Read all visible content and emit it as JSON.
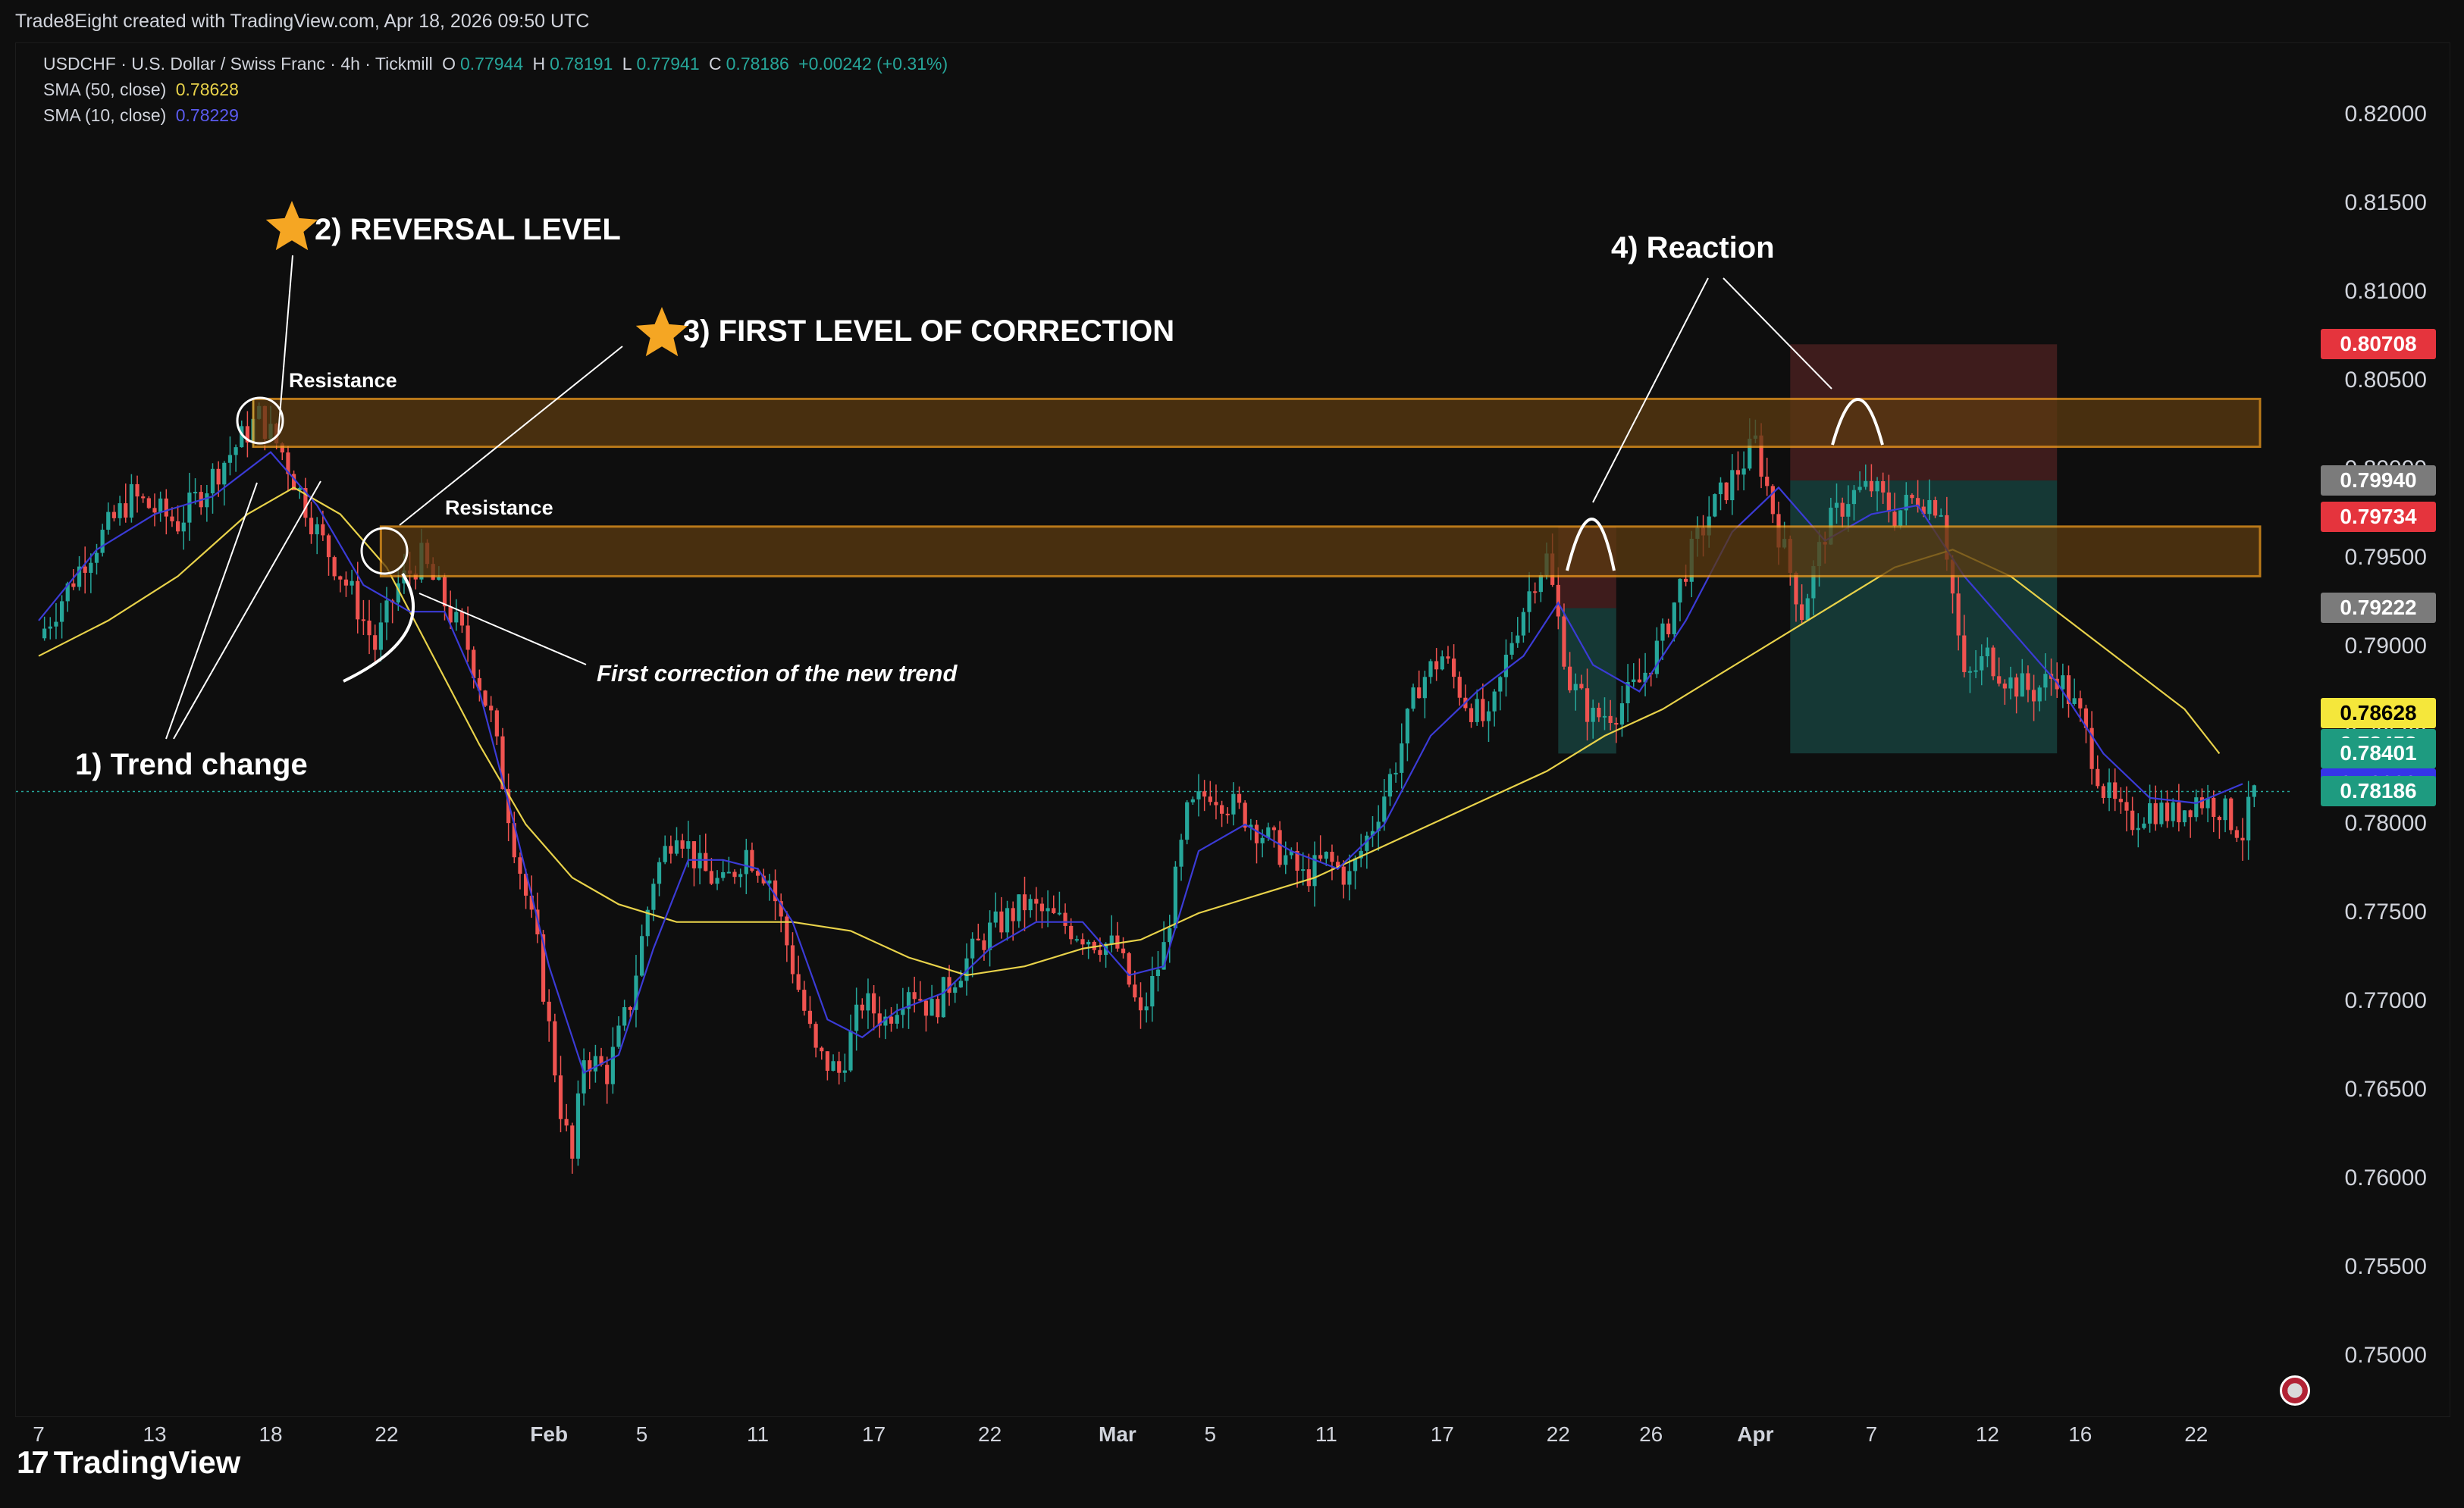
{
  "credit": "Trade8Eight created with TradingView.com, Apr 18, 2026 09:50 UTC",
  "legend": {
    "symbol": "USDCHF · U.S. Dollar / Swiss Franc · 4h · Tickmill",
    "o_label": "O",
    "o_value": "0.77944",
    "h_label": "H",
    "h_value": "0.78191",
    "l_label": "L",
    "l_value": "0.77941",
    "c_label": "C",
    "c_value": "0.78186",
    "change": "+0.00242 (+0.31%)",
    "sma50_label": "SMA (50, close)",
    "sma50_value": "0.78628",
    "sma10_label": "SMA (10, close)",
    "sma10_value": "0.78229"
  },
  "annotations": {
    "trend_change": "1) Trend change",
    "reversal_level": "2) REVERSAL LEVEL",
    "first_correction_level": "3) FIRST LEVEL OF CORRECTION",
    "reaction": "4) Reaction",
    "resistance_1": "Resistance",
    "resistance_2": "Resistance",
    "first_correction_note": "First correction of the new trend"
  },
  "price_labels": [
    {
      "value": "0.80708",
      "bg": "#e5343d",
      "fg": "#ffffff",
      "price": 0.80708
    },
    {
      "value": "0.79940",
      "bg": "#7b7b7b",
      "fg": "#ffffff",
      "price": 0.7994
    },
    {
      "value": "0.79734",
      "bg": "#e5343d",
      "fg": "#ffffff",
      "price": 0.79734
    },
    {
      "value": "0.79222",
      "bg": "#7b7b7b",
      "fg": "#ffffff",
      "price": 0.79222
    },
    {
      "value": "0.78628",
      "bg": "#f5e73b",
      "fg": "#000000",
      "price": 0.78628
    },
    {
      "value": "0.78453",
      "bg": "#1e9b80",
      "fg": "#ffffff",
      "price": 0.78453
    },
    {
      "value": "0.78401",
      "bg": "#1e9b80",
      "fg": "#ffffff",
      "price": 0.78401
    },
    {
      "value": "0.78229",
      "bg": "#3535e8",
      "fg": "#ffffff",
      "price": 0.78229
    },
    {
      "value": "0.78186",
      "bg": "#1e9b80",
      "fg": "#ffffff",
      "price": 0.78186
    }
  ],
  "footer": {
    "logo_text": "TradingView",
    "logo_mark": "17"
  },
  "colors": {
    "up": "#26a69a",
    "down": "#ef5350",
    "sma50": "#e8d24a",
    "sma10": "#3b3bd6",
    "zone_fill": "#5c3a10",
    "zone_border": "#f29d1d"
  },
  "chart_data": {
    "type": "candlestick",
    "title": "USDCHF · U.S. Dollar / Swiss Franc · 4h · Tickmill",
    "timeframe": "4h",
    "ylim": [
      0.75,
      0.8225
    ],
    "y_ticks": [
      "0.82000",
      "0.81500",
      "0.81000",
      "0.80500",
      "0.80000",
      "0.79500",
      "0.79000",
      "0.78500",
      "0.78000",
      "0.77500",
      "0.77000",
      "0.76500",
      "0.76000",
      "0.75500",
      "0.75000"
    ],
    "x_ticks": [
      "7",
      "13",
      "18",
      "22",
      "Feb",
      "5",
      "11",
      "17",
      "22",
      "Mar",
      "5",
      "11",
      "17",
      "22",
      "26",
      "Apr",
      "7",
      "12",
      "16",
      "22"
    ],
    "x_tick_index": [
      0,
      10,
      20,
      30,
      44,
      52,
      62,
      72,
      82,
      93,
      101,
      111,
      121,
      131,
      139,
      148,
      158,
      168,
      176,
      186
    ],
    "series": [
      {
        "name": "SMA (50, close)",
        "value": 0.78628
      },
      {
        "name": "SMA (10, close)",
        "value": 0.78229
      }
    ],
    "close_path": [
      [
        0,
        0.7905
      ],
      [
        4,
        0.795
      ],
      [
        8,
        0.7985
      ],
      [
        12,
        0.797
      ],
      [
        16,
        0.8005
      ],
      [
        19,
        0.803
      ],
      [
        21,
        0.801
      ],
      [
        24,
        0.7965
      ],
      [
        27,
        0.793
      ],
      [
        29,
        0.79
      ],
      [
        31,
        0.7935
      ],
      [
        33,
        0.795
      ],
      [
        35,
        0.7925
      ],
      [
        37,
        0.79
      ],
      [
        39,
        0.786
      ],
      [
        41,
        0.779
      ],
      [
        43,
        0.773
      ],
      [
        45,
        0.764
      ],
      [
        46,
        0.761
      ],
      [
        47,
        0.767
      ],
      [
        49,
        0.766
      ],
      [
        51,
        0.77
      ],
      [
        53,
        0.777
      ],
      [
        55,
        0.78
      ],
      [
        57,
        0.7775
      ],
      [
        59,
        0.7765
      ],
      [
        61,
        0.7785
      ],
      [
        63,
        0.777
      ],
      [
        65,
        0.772
      ],
      [
        67,
        0.767
      ],
      [
        69,
        0.766
      ],
      [
        71,
        0.77
      ],
      [
        73,
        0.769
      ],
      [
        75,
        0.771
      ],
      [
        77,
        0.7695
      ],
      [
        79,
        0.7715
      ],
      [
        82,
        0.774
      ],
      [
        85,
        0.7755
      ],
      [
        88,
        0.7745
      ],
      [
        91,
        0.7735
      ],
      [
        93,
        0.773
      ],
      [
        95,
        0.769
      ],
      [
        97,
        0.773
      ],
      [
        99,
        0.7805
      ],
      [
        101,
        0.782
      ],
      [
        104,
        0.7805
      ],
      [
        107,
        0.7785
      ],
      [
        109,
        0.777
      ],
      [
        111,
        0.778
      ],
      [
        113,
        0.777
      ],
      [
        115,
        0.78
      ],
      [
        117,
        0.7835
      ],
      [
        119,
        0.788
      ],
      [
        121,
        0.7895
      ],
      [
        123,
        0.787
      ],
      [
        125,
        0.7855
      ],
      [
        127,
        0.7905
      ],
      [
        129,
        0.794
      ],
      [
        130,
        0.795
      ],
      [
        132,
        0.788
      ],
      [
        134,
        0.786
      ],
      [
        136,
        0.7865
      ],
      [
        138,
        0.788
      ],
      [
        140,
        0.7905
      ],
      [
        142,
        0.7945
      ],
      [
        144,
        0.7975
      ],
      [
        146,
        0.7995
      ],
      [
        148,
        0.8015
      ],
      [
        150,
        0.7965
      ],
      [
        152,
        0.792
      ],
      [
        154,
        0.7965
      ],
      [
        156,
        0.7985
      ],
      [
        158,
        0.799
      ],
      [
        160,
        0.7975
      ],
      [
        162,
        0.7985
      ],
      [
        164,
        0.798
      ],
      [
        166,
        0.788
      ],
      [
        168,
        0.7895
      ],
      [
        170,
        0.788
      ],
      [
        172,
        0.7875
      ],
      [
        174,
        0.7885
      ],
      [
        176,
        0.786
      ],
      [
        178,
        0.782
      ],
      [
        180,
        0.78
      ],
      [
        182,
        0.781
      ],
      [
        184,
        0.7805
      ],
      [
        186,
        0.7815
      ],
      [
        188,
        0.781
      ],
      [
        190,
        0.7795
      ],
      [
        191,
        0.78186
      ]
    ],
    "sma50_path": [
      [
        0,
        0.7895
      ],
      [
        6,
        0.7915
      ],
      [
        12,
        0.794
      ],
      [
        18,
        0.7975
      ],
      [
        22,
        0.799
      ],
      [
        26,
        0.7975
      ],
      [
        30,
        0.7945
      ],
      [
        34,
        0.7895
      ],
      [
        38,
        0.7845
      ],
      [
        42,
        0.78
      ],
      [
        46,
        0.777
      ],
      [
        50,
        0.7755
      ],
      [
        55,
        0.7745
      ],
      [
        60,
        0.7745
      ],
      [
        65,
        0.7745
      ],
      [
        70,
        0.774
      ],
      [
        75,
        0.7725
      ],
      [
        80,
        0.7715
      ],
      [
        85,
        0.772
      ],
      [
        90,
        0.773
      ],
      [
        95,
        0.7735
      ],
      [
        100,
        0.775
      ],
      [
        105,
        0.776
      ],
      [
        110,
        0.777
      ],
      [
        115,
        0.7785
      ],
      [
        120,
        0.78
      ],
      [
        125,
        0.7815
      ],
      [
        130,
        0.783
      ],
      [
        135,
        0.785
      ],
      [
        140,
        0.7865
      ],
      [
        145,
        0.7885
      ],
      [
        150,
        0.7905
      ],
      [
        155,
        0.7925
      ],
      [
        160,
        0.7945
      ],
      [
        165,
        0.7955
      ],
      [
        170,
        0.794
      ],
      [
        175,
        0.7915
      ],
      [
        180,
        0.789
      ],
      [
        185,
        0.7865
      ],
      [
        188,
        0.784
      ]
    ],
    "sma10_path": [
      [
        0,
        0.7915
      ],
      [
        5,
        0.7955
      ],
      [
        10,
        0.7975
      ],
      [
        15,
        0.7985
      ],
      [
        20,
        0.801
      ],
      [
        24,
        0.798
      ],
      [
        28,
        0.7935
      ],
      [
        32,
        0.792
      ],
      [
        35,
        0.792
      ],
      [
        38,
        0.7875
      ],
      [
        41,
        0.78
      ],
      [
        44,
        0.772
      ],
      [
        47,
        0.766
      ],
      [
        50,
        0.767
      ],
      [
        53,
        0.773
      ],
      [
        56,
        0.778
      ],
      [
        59,
        0.778
      ],
      [
        62,
        0.7775
      ],
      [
        65,
        0.7745
      ],
      [
        68,
        0.769
      ],
      [
        71,
        0.768
      ],
      [
        74,
        0.7695
      ],
      [
        78,
        0.7705
      ],
      [
        82,
        0.773
      ],
      [
        86,
        0.7745
      ],
      [
        90,
        0.7745
      ],
      [
        94,
        0.7715
      ],
      [
        97,
        0.772
      ],
      [
        100,
        0.7785
      ],
      [
        104,
        0.78
      ],
      [
        108,
        0.7785
      ],
      [
        112,
        0.7775
      ],
      [
        116,
        0.78
      ],
      [
        120,
        0.785
      ],
      [
        124,
        0.7875
      ],
      [
        128,
        0.7895
      ],
      [
        131,
        0.7925
      ],
      [
        134,
        0.789
      ],
      [
        138,
        0.7875
      ],
      [
        142,
        0.7915
      ],
      [
        146,
        0.7965
      ],
      [
        150,
        0.799
      ],
      [
        154,
        0.796
      ],
      [
        158,
        0.7975
      ],
      [
        162,
        0.798
      ],
      [
        166,
        0.794
      ],
      [
        170,
        0.791
      ],
      [
        174,
        0.788
      ],
      [
        178,
        0.784
      ],
      [
        182,
        0.7815
      ],
      [
        186,
        0.7812
      ],
      [
        190,
        0.78229
      ]
    ],
    "zones": [
      {
        "name": "Resistance",
        "top": 0.804,
        "bottom": 0.8013,
        "from": 18.5,
        "to": 191.5
      },
      {
        "name": "Resistance",
        "top": 0.7968,
        "bottom": 0.794,
        "from": 29.5,
        "to": 191.5
      }
    ],
    "positions": [
      {
        "from": 131,
        "to": 136,
        "entry": 0.7922,
        "stop": 0.7968,
        "target": 0.784
      },
      {
        "from": 151,
        "to": 174,
        "entry": 0.7994,
        "stop": 0.80708,
        "target": 0.78401
      }
    ]
  }
}
